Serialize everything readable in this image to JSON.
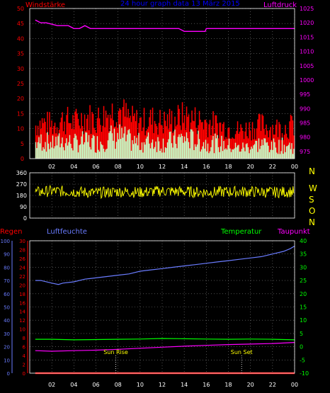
{
  "colors": {
    "background": "#000000",
    "axis": "#ffffff",
    "grid": "#808080",
    "wind_avg": "#c8ffc8",
    "wind_gust": "#ff0000",
    "pressure": "#ff00ff",
    "direction": "#ffff00",
    "title": "#0000ff",
    "rain": "#ff0000",
    "humidity": "#6a7cff",
    "temperature": "#00ff00",
    "dewpoint": "#ff00ff",
    "sun_label": "#ffff00"
  },
  "chart_data": [
    {
      "type": "bar",
      "title": "24 hour graph data  13 März 2015",
      "ylabel_left": "Windstärke",
      "ylabel_right": "Luftdruck",
      "x_ticks": [
        "02",
        "04",
        "06",
        "08",
        "10",
        "12",
        "14",
        "16",
        "18",
        "20",
        "22",
        "00"
      ],
      "y_left_ticks": [
        0,
        5,
        10,
        15,
        20,
        25,
        30,
        35,
        40,
        45,
        50
      ],
      "y_right_ticks": [
        975,
        980,
        985,
        990,
        995,
        1000,
        1005,
        1010,
        1015,
        1020,
        1025
      ],
      "ylim_left": [
        0,
        50
      ],
      "ylim_right": [
        972.5,
        1025
      ],
      "grid": true,
      "series": [
        {
          "name": "Windstärke",
          "kind": "bar",
          "x": [
            0.5,
            1,
            2,
            3,
            4,
            5,
            6,
            7,
            8,
            9,
            10,
            11,
            12,
            13,
            14,
            15,
            16,
            17,
            18,
            19,
            20,
            21,
            22,
            23,
            24
          ],
          "values": [
            6,
            7,
            6,
            7,
            6,
            7,
            6,
            8,
            9,
            7,
            6,
            7,
            6,
            7,
            8,
            7,
            6,
            6,
            5,
            4,
            5,
            6,
            5,
            5,
            5
          ]
        },
        {
          "name": "Böen",
          "kind": "bar",
          "x": [
            0.5,
            1,
            2,
            3,
            4,
            5,
            6,
            7,
            8,
            9,
            10,
            11,
            12,
            13,
            14,
            15,
            16,
            17,
            18,
            19,
            20,
            21,
            22,
            23,
            24
          ],
          "values": [
            12,
            13,
            12,
            14,
            13,
            15,
            14,
            16,
            18,
            14,
            13,
            14,
            13,
            14,
            15,
            14,
            13,
            12,
            11,
            10,
            11,
            12,
            11,
            11,
            12
          ]
        },
        {
          "name": "Luftdruck",
          "kind": "line",
          "x": [
            0.5,
            1.0,
            1.5,
            2.5,
            3.5,
            4.0,
            4.5,
            5.0,
            5.5,
            6.0,
            7.0,
            8.0,
            10.0,
            12.0,
            13.5,
            14.0,
            15.9,
            16.0,
            18.0,
            20.0,
            22.0,
            24.0
          ],
          "values": [
            1021,
            1020,
            1020,
            1019,
            1019,
            1018,
            1018,
            1019,
            1018,
            1018,
            1018,
            1018,
            1018,
            1018,
            1018,
            1017,
            1017,
            1018,
            1018,
            1018,
            1018,
            1018
          ]
        }
      ]
    },
    {
      "type": "line",
      "ylabel_right": "N W S O N",
      "right_labels": [
        "N",
        "W",
        "S",
        "O",
        "N"
      ],
      "y_ticks": [
        0,
        90,
        180,
        270,
        360
      ],
      "ylim": [
        0,
        360
      ],
      "grid": true,
      "series": [
        {
          "name": "Windrichtung",
          "x": [
            0.5,
            2,
            4,
            6,
            8,
            10,
            12,
            14,
            16,
            18,
            20,
            22,
            24
          ],
          "values": [
            205,
            215,
            210,
            200,
            210,
            205,
            215,
            210,
            205,
            210,
            210,
            205,
            210
          ]
        }
      ]
    },
    {
      "type": "line",
      "labels": {
        "rain": "Regen",
        "humidity": "Luftfeuchte",
        "temperature": "Temperatur",
        "dewpoint": "Taupunkt"
      },
      "x_ticks": [
        "02",
        "04",
        "06",
        "08",
        "10",
        "12",
        "14",
        "16",
        "18",
        "20",
        "22",
        "00"
      ],
      "y_humidity_ticks": [
        0,
        10,
        20,
        30,
        40,
        50,
        60,
        70,
        80,
        90,
        100
      ],
      "y_rain_ticks": [
        0,
        2,
        4,
        6,
        8,
        10,
        12,
        14,
        16,
        18,
        20,
        22,
        24,
        26,
        28,
        30
      ],
      "y_temp_ticks": [
        -10,
        -5,
        0,
        5,
        10,
        15,
        20,
        25,
        30,
        35,
        40
      ],
      "ylim_temp": [
        -10,
        40
      ],
      "grid": true,
      "annotations": [
        {
          "label": "Sun Rise",
          "x": 7.8
        },
        {
          "label": "Sun Set",
          "x": 19.2
        }
      ],
      "series": [
        {
          "name": "Luftfeuchte",
          "axis": "humidity",
          "x": [
            0.5,
            1.0,
            2.0,
            2.6,
            3.0,
            4.0,
            5.0,
            6.0,
            7.0,
            8.0,
            9.0,
            10.0,
            11.0,
            12.0,
            13.0,
            14.0,
            15.0,
            16.0,
            17.0,
            18.0,
            19.0,
            20.0,
            21.0,
            22.0,
            23.0,
            23.6,
            24.0
          ],
          "values": [
            70,
            70,
            68,
            67,
            68,
            69,
            71,
            72,
            73,
            74,
            75,
            77,
            78,
            79,
            80,
            81,
            82,
            83,
            84,
            85,
            86,
            87,
            88,
            90,
            92,
            94,
            96
          ]
        },
        {
          "name": "Temperatur",
          "axis": "temp",
          "x": [
            0.5,
            2,
            4,
            6,
            8,
            10,
            12,
            14,
            16,
            18,
            20,
            22,
            24
          ],
          "values": [
            2.8,
            2.8,
            2.6,
            2.7,
            2.8,
            2.9,
            3.1,
            3.0,
            2.9,
            2.8,
            2.9,
            2.8,
            2.6
          ]
        },
        {
          "name": "Taupunkt",
          "axis": "temp",
          "x": [
            0.5,
            2,
            4,
            6,
            8,
            10,
            12,
            14,
            16,
            18,
            20,
            22,
            24
          ],
          "values": [
            -1.5,
            -1.7,
            -1.5,
            -1.3,
            -1.0,
            -0.6,
            -0.2,
            0.2,
            0.5,
            0.8,
            1.0,
            1.2,
            1.6
          ]
        },
        {
          "name": "Regen",
          "axis": "rain",
          "x": [
            0.5,
            24
          ],
          "values": [
            0,
            0
          ]
        }
      ]
    }
  ]
}
